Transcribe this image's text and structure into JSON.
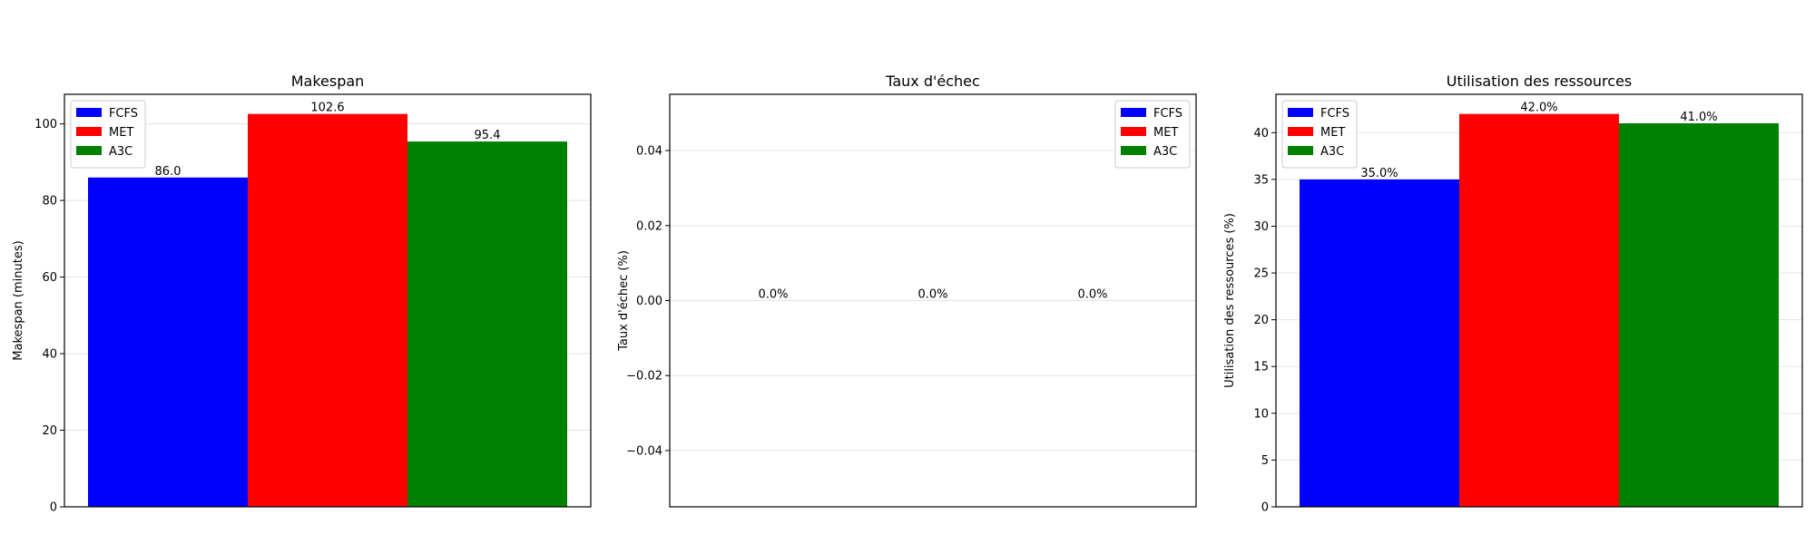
{
  "chart_data": [
    {
      "type": "bar",
      "title": "Makespan",
      "xlabel": "",
      "ylabel": "Makespan (minutes)",
      "categories": [
        ""
      ],
      "series": [
        {
          "name": "FCFS",
          "color": "#0000ff",
          "values": [
            86.0
          ],
          "label": "86.0"
        },
        {
          "name": "MET",
          "color": "#ff0000",
          "values": [
            102.6
          ],
          "label": "102.6"
        },
        {
          "name": "A3C",
          "color": "#008000",
          "values": [
            95.4
          ],
          "label": "95.4"
        }
      ],
      "ylim": [
        0,
        107.73
      ],
      "yticks": [
        0,
        20,
        40,
        60,
        80,
        100
      ],
      "ytick_labels": [
        "0",
        "20",
        "40",
        "60",
        "80",
        "100"
      ],
      "legend": "upper-left",
      "grid": true
    },
    {
      "type": "bar",
      "title": "Taux d'échec",
      "xlabel": "",
      "ylabel": "Taux d'échec (%)",
      "categories": [
        ""
      ],
      "series": [
        {
          "name": "FCFS",
          "color": "#0000ff",
          "values": [
            0.0
          ],
          "label": "0.0%"
        },
        {
          "name": "MET",
          "color": "#ff0000",
          "values": [
            0.0
          ],
          "label": "0.0%"
        },
        {
          "name": "A3C",
          "color": "#008000",
          "values": [
            0.0
          ],
          "label": "0.0%"
        }
      ],
      "ylim": [
        -0.055,
        0.055
      ],
      "yticks": [
        -0.04,
        -0.02,
        0.0,
        0.02,
        0.04
      ],
      "ytick_labels": [
        "−0.04",
        "−0.02",
        "0.00",
        "0.02",
        "0.04"
      ],
      "legend": "upper-right",
      "grid": true
    },
    {
      "type": "bar",
      "title": "Utilisation des ressources",
      "xlabel": "",
      "ylabel": "Utilisation des ressources (%)",
      "categories": [
        ""
      ],
      "series": [
        {
          "name": "FCFS",
          "color": "#0000ff",
          "values": [
            35.0
          ],
          "label": "35.0%"
        },
        {
          "name": "MET",
          "color": "#ff0000",
          "values": [
            42.0
          ],
          "label": "42.0%"
        },
        {
          "name": "A3C",
          "color": "#008000",
          "values": [
            41.0
          ],
          "label": "41.0%"
        }
      ],
      "ylim": [
        0,
        44.1
      ],
      "yticks": [
        0,
        5,
        10,
        15,
        20,
        25,
        30,
        35,
        40
      ],
      "ytick_labels": [
        "0",
        "5",
        "10",
        "15",
        "20",
        "25",
        "30",
        "35",
        "40"
      ],
      "legend": "upper-left",
      "grid": true
    }
  ]
}
